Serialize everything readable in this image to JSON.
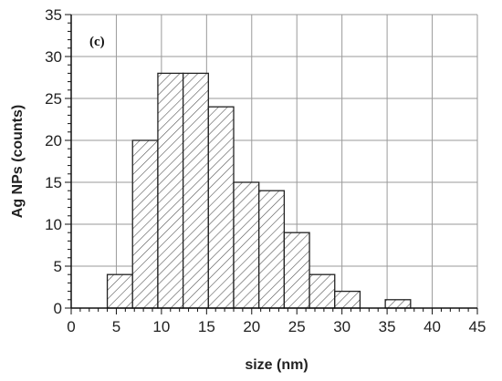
{
  "chart_data": {
    "type": "bar",
    "panel_label": "(c)",
    "xlabel": "size (nm)",
    "ylabel": "Ag NPs (counts)",
    "xlim": [
      0,
      45
    ],
    "ylim": [
      0,
      35
    ],
    "x_ticks": [
      "0",
      "5",
      "10",
      "15",
      "20",
      "25",
      "30",
      "35",
      "40",
      "45"
    ],
    "y_ticks": [
      "0",
      "5",
      "10",
      "15",
      "20",
      "25",
      "30",
      "35"
    ],
    "grid": true,
    "bar_fill": "hatched",
    "bins": [
      {
        "start": 4.0,
        "end": 6.8,
        "count": 4
      },
      {
        "start": 6.8,
        "end": 9.6,
        "count": 20
      },
      {
        "start": 9.6,
        "end": 12.4,
        "count": 28
      },
      {
        "start": 12.4,
        "end": 15.2,
        "count": 28
      },
      {
        "start": 15.2,
        "end": 18.0,
        "count": 24
      },
      {
        "start": 18.0,
        "end": 20.8,
        "count": 15
      },
      {
        "start": 20.8,
        "end": 23.6,
        "count": 14
      },
      {
        "start": 23.6,
        "end": 26.4,
        "count": 9
      },
      {
        "start": 26.4,
        "end": 29.2,
        "count": 4
      },
      {
        "start": 29.2,
        "end": 32.0,
        "count": 2
      },
      {
        "start": 34.8,
        "end": 37.6,
        "count": 1
      }
    ]
  }
}
